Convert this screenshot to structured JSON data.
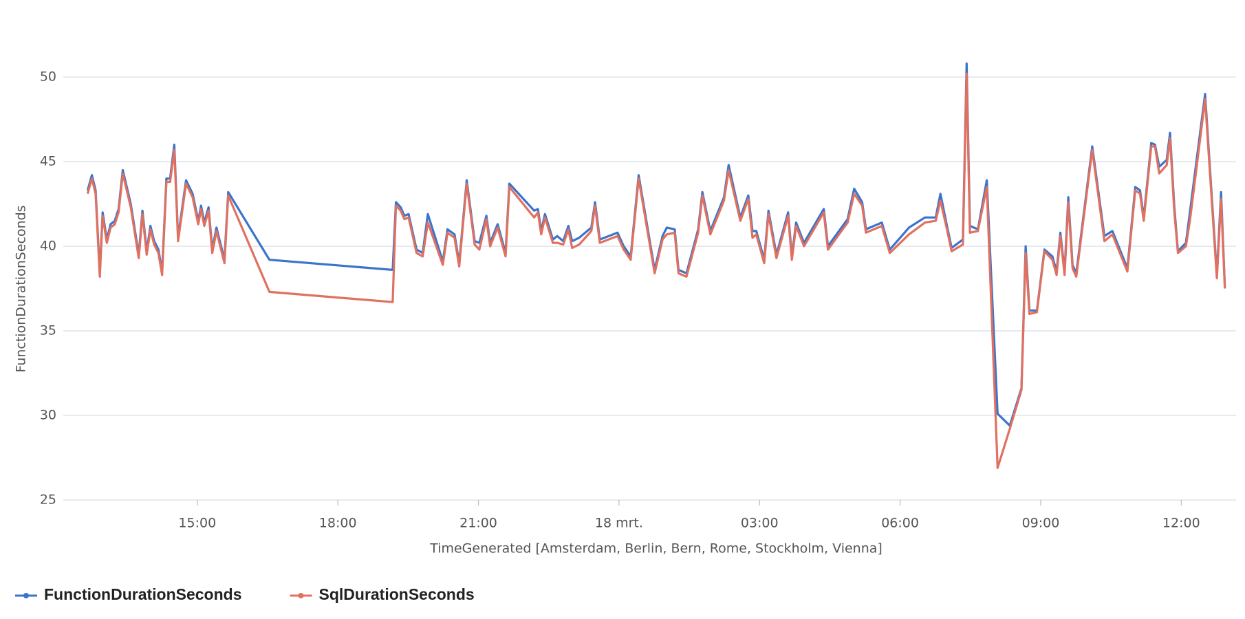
{
  "chart_data": {
    "type": "line",
    "y_label": "FunctionDurationSeconds",
    "x_label": "TimeGenerated [Amsterdam, Berlin, Bern, Rome, Stockholm, Vienna]",
    "xlim": [
      12.14,
      37.17
    ],
    "xticks": [
      {
        "value": 15,
        "label": "15:00"
      },
      {
        "value": 18,
        "label": "18:00"
      },
      {
        "value": 21,
        "label": "21:00"
      },
      {
        "value": 24,
        "label": "18 mrt."
      },
      {
        "value": 27,
        "label": "03:00"
      },
      {
        "value": 30,
        "label": "06:00"
      },
      {
        "value": 33,
        "label": "09:00"
      },
      {
        "value": 36,
        "label": "12:00"
      }
    ],
    "ylim": [
      25,
      52.4
    ],
    "yticks": [
      25,
      30,
      35,
      40,
      45,
      50
    ],
    "grid": true,
    "legend": "bottom-left",
    "x": [
      12.66,
      12.75,
      12.83,
      12.92,
      12.98,
      13.07,
      13.15,
      13.24,
      13.32,
      13.41,
      13.58,
      13.75,
      13.83,
      13.92,
      14.0,
      14.08,
      14.17,
      14.25,
      14.34,
      14.42,
      14.51,
      14.59,
      14.68,
      14.76,
      14.9,
      15.02,
      15.08,
      15.15,
      15.24,
      15.32,
      15.41,
      15.58,
      15.66,
      16.54,
      19.17,
      19.24,
      19.34,
      19.42,
      19.51,
      19.68,
      19.81,
      19.92,
      20.24,
      20.34,
      20.49,
      20.59,
      20.75,
      20.92,
      21.02,
      21.17,
      21.25,
      21.41,
      21.58,
      21.66,
      22.19,
      22.27,
      22.34,
      22.42,
      22.59,
      22.68,
      22.81,
      22.92,
      23.0,
      23.15,
      23.41,
      23.49,
      23.59,
      23.97,
      24.1,
      24.25,
      24.42,
      24.76,
      24.93,
      25.02,
      25.19,
      25.27,
      25.44,
      25.69,
      25.78,
      25.95,
      26.24,
      26.34,
      26.59,
      26.76,
      26.85,
      26.93,
      27.1,
      27.19,
      27.36,
      27.61,
      27.69,
      27.78,
      27.95,
      28.37,
      28.46,
      28.88,
      29.02,
      29.19,
      29.27,
      29.61,
      29.78,
      30.19,
      30.53,
      30.76,
      30.86,
      31.0,
      31.1,
      31.34,
      31.42,
      31.49,
      31.66,
      31.85,
      32.08,
      32.34,
      32.59,
      32.68,
      32.76,
      32.92,
      33.08,
      33.25,
      33.34,
      33.42,
      33.51,
      33.59,
      33.68,
      33.76,
      34.1,
      34.36,
      34.53,
      34.85,
      35.02,
      35.12,
      35.2,
      35.36,
      35.44,
      35.53,
      35.69,
      35.76,
      35.85,
      35.93,
      36.1,
      36.19,
      36.51,
      36.76,
      36.85,
      36.93
    ],
    "series": [
      {
        "name": "FunctionDurationSeconds",
        "color": "#3a74cc",
        "values": [
          43.3,
          44.2,
          43.3,
          38.4,
          42.0,
          40.4,
          41.3,
          41.5,
          42.2,
          44.5,
          42.5,
          39.5,
          42.1,
          39.7,
          41.2,
          40.3,
          39.8,
          38.5,
          44.0,
          44.0,
          46.0,
          40.5,
          42.3,
          43.9,
          43.1,
          41.5,
          42.4,
          41.4,
          42.3,
          39.8,
          41.1,
          39.2,
          43.2,
          39.2,
          38.6,
          42.6,
          42.3,
          41.8,
          41.9,
          39.8,
          39.6,
          41.9,
          39.1,
          41.0,
          40.7,
          39.0,
          43.9,
          40.3,
          40.2,
          41.8,
          40.2,
          41.3,
          39.6,
          43.7,
          42.1,
          42.2,
          40.9,
          41.9,
          40.4,
          40.6,
          40.3,
          41.2,
          40.3,
          40.5,
          41.1,
          42.6,
          40.4,
          40.8,
          40.0,
          39.4,
          44.2,
          38.6,
          40.6,
          41.1,
          41.0,
          38.6,
          38.4,
          41.0,
          43.2,
          40.9,
          42.9,
          44.8,
          41.7,
          43.0,
          40.9,
          40.9,
          39.2,
          42.1,
          39.5,
          42.0,
          39.4,
          41.4,
          40.2,
          42.2,
          40.0,
          41.6,
          43.4,
          42.6,
          41.0,
          41.4,
          39.8,
          41.1,
          41.7,
          41.7,
          43.1,
          41.2,
          39.9,
          40.4,
          50.8,
          41.2,
          41.0,
          43.9,
          30.1,
          29.4,
          31.6,
          40.0,
          36.2,
          36.2,
          39.8,
          39.4,
          38.5,
          40.8,
          38.5,
          42.9,
          38.9,
          38.4,
          45.9,
          40.6,
          40.9,
          38.7,
          43.5,
          43.3,
          41.7,
          46.1,
          46.0,
          44.7,
          45.1,
          46.7,
          42.4,
          39.7,
          40.2,
          42.1,
          49.0,
          38.3,
          43.2,
          37.6
        ]
      },
      {
        "name": "SqlDurationSeconds",
        "color": "#e07060",
        "values": [
          43.1,
          44.0,
          43.1,
          38.2,
          41.8,
          40.2,
          41.1,
          41.3,
          42.0,
          44.3,
          42.3,
          39.3,
          41.9,
          39.5,
          41.0,
          40.1,
          39.6,
          38.3,
          43.8,
          43.8,
          45.7,
          40.3,
          42.1,
          43.7,
          42.9,
          41.3,
          42.2,
          41.2,
          42.1,
          39.6,
          40.9,
          39.0,
          43.0,
          37.3,
          36.7,
          42.4,
          42.1,
          41.6,
          41.7,
          39.6,
          39.4,
          41.4,
          38.9,
          40.8,
          40.5,
          38.8,
          43.7,
          40.1,
          39.8,
          41.6,
          40.0,
          41.1,
          39.4,
          43.5,
          41.7,
          42.0,
          40.7,
          41.7,
          40.2,
          40.2,
          40.1,
          41.0,
          39.9,
          40.1,
          40.9,
          42.4,
          40.2,
          40.6,
          39.8,
          39.2,
          44.0,
          38.4,
          40.4,
          40.7,
          40.8,
          38.4,
          38.2,
          40.8,
          43.0,
          40.7,
          42.7,
          44.5,
          41.5,
          42.8,
          40.5,
          40.7,
          39.0,
          41.9,
          39.3,
          41.8,
          39.2,
          41.2,
          40.0,
          42.0,
          39.8,
          41.4,
          43.1,
          42.4,
          40.8,
          41.2,
          39.6,
          40.7,
          41.4,
          41.5,
          42.7,
          41.0,
          39.7,
          40.1,
          50.2,
          40.8,
          40.9,
          43.5,
          26.9,
          29.2,
          31.5,
          39.6,
          36.0,
          36.1,
          39.7,
          39.2,
          38.3,
          40.6,
          38.3,
          42.6,
          38.7,
          38.2,
          45.7,
          40.3,
          40.7,
          38.5,
          43.3,
          43.1,
          41.5,
          45.9,
          45.9,
          44.3,
          44.8,
          46.4,
          42.1,
          39.6,
          40.0,
          41.6,
          48.7,
          38.1,
          42.8,
          37.5
        ]
      }
    ]
  }
}
